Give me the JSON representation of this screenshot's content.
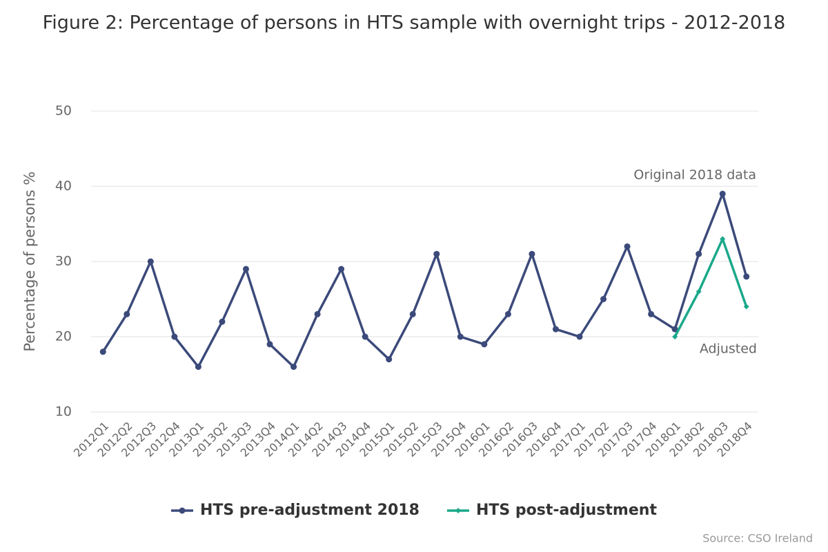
{
  "chart_data": {
    "type": "line",
    "title": "Figure 2: Percentage of persons in HTS sample with overnight trips - 2012-2018",
    "y_label": "Percentage of persons %",
    "categories": [
      "2012Q1",
      "2012Q2",
      "2012Q3",
      "2012Q4",
      "2013Q1",
      "2013Q2",
      "2013Q3",
      "2013Q4",
      "2014Q1",
      "2014Q2",
      "2014Q3",
      "2014Q4",
      "2015Q1",
      "2015Q2",
      "2015Q3",
      "2015Q4",
      "2016Q1",
      "2016Q2",
      "2016Q3",
      "2016Q4",
      "2017Q1",
      "2017Q2",
      "2017Q3",
      "2017Q4",
      "2018Q1",
      "2018Q2",
      "2018Q3",
      "2018Q4"
    ],
    "series": [
      {
        "name": "HTS pre-adjustment 2018",
        "color": "#3b4a7a",
        "values": [
          18,
          23,
          30,
          20,
          16,
          22,
          29,
          19,
          16,
          23,
          29,
          20,
          17,
          23,
          31,
          20,
          19,
          23,
          31,
          21,
          20,
          25,
          32,
          23,
          21,
          31,
          39,
          28
        ]
      },
      {
        "name": "HTS post-adjustment",
        "color": "#1aa88a",
        "values": [
          null,
          null,
          null,
          null,
          null,
          null,
          null,
          null,
          null,
          null,
          null,
          null,
          null,
          null,
          null,
          null,
          null,
          null,
          null,
          null,
          null,
          null,
          null,
          null,
          20,
          26,
          33,
          24
        ]
      }
    ],
    "ylim": [
      10,
      50
    ],
    "yticks": [
      10,
      20,
      30,
      40,
      50
    ],
    "grid": true,
    "annotations": [
      "Original 2018 data",
      "Adjusted"
    ],
    "source": "Source: CSO Ireland"
  }
}
